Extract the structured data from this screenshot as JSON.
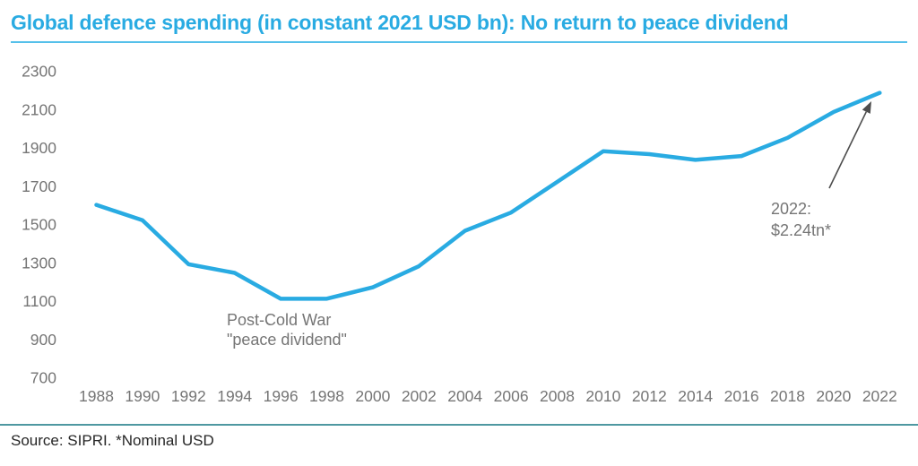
{
  "header": {
    "title": "Global defence spending (in constant 2021 USD bn): No return to peace dividend"
  },
  "footer": {
    "source": "Source: SIPRI. *Nominal USD"
  },
  "colors": {
    "title_blue": "#29ABE2",
    "title_underline_blue": "#55C0EA",
    "line_cyan": "#29ABE2",
    "axis_gray": "#757575",
    "annotation_gray": "#757575",
    "arrow_gray": "#4D4D4D",
    "footer_divider_teal": "#4E98A1",
    "source_text": "#262626"
  },
  "chart_data": {
    "type": "line",
    "title": "Global defence spending (in constant 2021 USD bn): No return to peace dividend",
    "xlabel": "",
    "ylabel": "",
    "x": [
      1988,
      1990,
      1992,
      1994,
      1996,
      1998,
      2000,
      2002,
      2004,
      2006,
      2008,
      2010,
      2012,
      2014,
      2016,
      2018,
      2020,
      2022
    ],
    "values": [
      1600,
      1520,
      1290,
      1245,
      1110,
      1110,
      1170,
      1280,
      1465,
      1560,
      1720,
      1880,
      1865,
      1835,
      1855,
      1950,
      2085,
      2185
    ],
    "series_name": "Global defence spending",
    "line_color": "#29ABE2",
    "ylim": [
      700,
      2300
    ],
    "yticks": [
      700,
      900,
      1100,
      1300,
      1500,
      1700,
      1900,
      2100,
      2300
    ],
    "xticks": [
      1988,
      1990,
      1992,
      1994,
      1996,
      1998,
      2000,
      2002,
      2004,
      2006,
      2008,
      2010,
      2012,
      2014,
      2016,
      2018,
      2020,
      2022
    ],
    "grid": false,
    "legend": "none",
    "annotations": {
      "peace_dividend": {
        "line1": "Post-Cold War",
        "line2": "\"peace dividend\"",
        "near_x": 1996
      },
      "endpoint": {
        "line1": "2022:",
        "line2": "$2.24tn*",
        "points_to_x": 2022,
        "nominal_value": "$2.24tn"
      }
    }
  }
}
